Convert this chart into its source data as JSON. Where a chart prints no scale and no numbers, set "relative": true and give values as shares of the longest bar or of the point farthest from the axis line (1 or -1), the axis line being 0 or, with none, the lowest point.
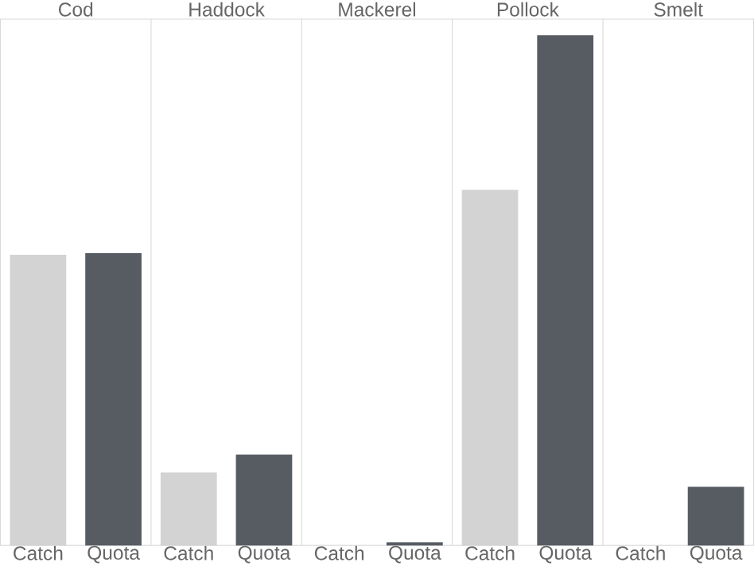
{
  "chart_data": {
    "type": "bar",
    "relative": true,
    "categories": [
      "Catch",
      "Quota",
      "Catch",
      "Quota",
      "Catch",
      "Quota",
      "Catch",
      "Quota",
      "Catch",
      "Quota"
    ],
    "values": [
      0.57,
      0.573,
      0.143,
      0.178,
      0,
      0.006,
      0.697,
      1,
      0,
      0.115
    ],
    "colors": [
      "#d3d3d3",
      "#575c63",
      "#d3d3d3",
      "#575c63",
      "#d3d3d3",
      "#575c63",
      "#d3d3d3",
      "#575c63",
      "#d3d3d3",
      "#575c63"
    ],
    "annotations": [
      "Cod",
      "Haddock",
      "Mackerel",
      "Pollock",
      "Smelt"
    ]
  }
}
